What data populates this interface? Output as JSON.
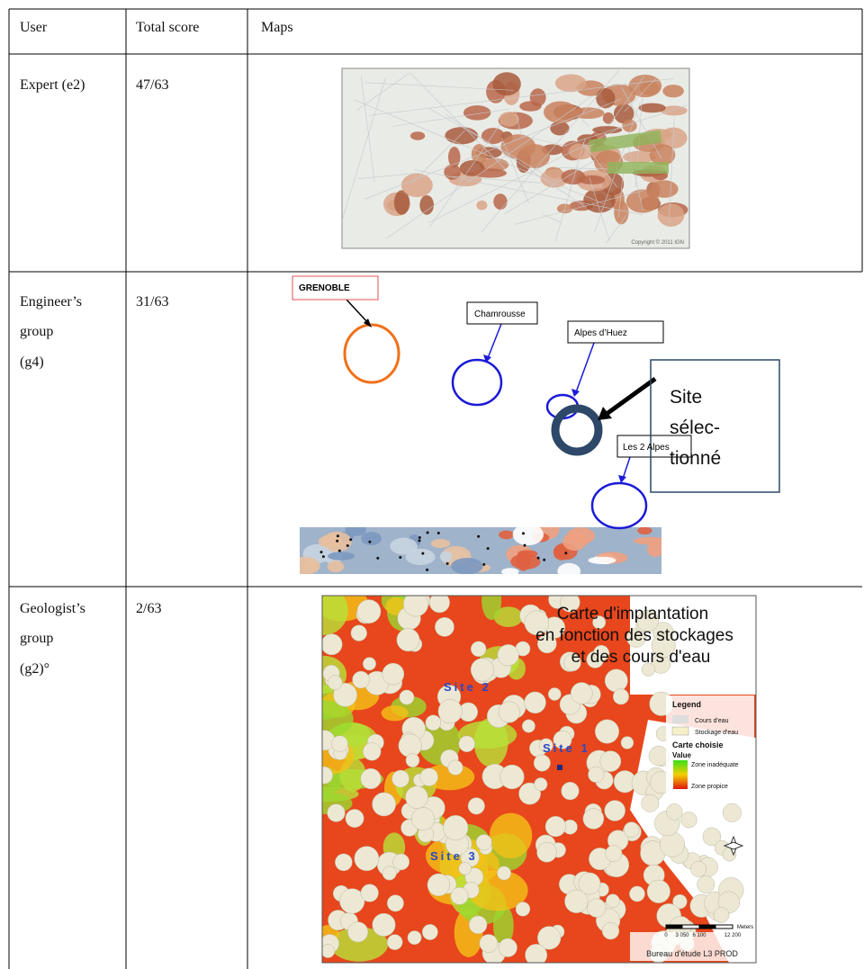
{
  "table": {
    "header": [
      "User",
      "Total score",
      "Maps"
    ],
    "rows": [
      {
        "user": [
          "Expert (e2)"
        ],
        "score": "47/63",
        "map": {
          "copyright": "Copyright © 2011 IGN"
        }
      },
      {
        "user": [
          "Engineer’s",
          "group",
          "(g4)"
        ],
        "score": "31/63",
        "map": {
          "labels": [
            "GRENOBLE",
            "Chamrousse",
            "Alpes d’Huez",
            "Les 2 Alpes"
          ],
          "callout": [
            "Site",
            "sélec-",
            "tionné"
          ]
        }
      },
      {
        "user": [
          "Geologist’s",
          "group",
          "(g2)°"
        ],
        "score": "2/63",
        "map": {
          "title": [
            "Carte d'implantation",
            "en fonction des stockages",
            "et des cours d'eau"
          ],
          "sites": [
            "Site 2",
            "Site 1",
            "Site 3"
          ],
          "legend": {
            "title": "Legend",
            "items": [
              "Cours d'eau",
              "Stockage d'eau"
            ],
            "subtitle": "Carte choisie",
            "value": "Value",
            "scale": [
              "Zone inadéquate",
              "Zone propice"
            ]
          },
          "scalebar": [
            "0",
            "3 050",
            "6 100",
            "12 200",
            "Meters"
          ],
          "credit": "Bureau d'étude L3 PROD"
        }
      }
    ]
  }
}
